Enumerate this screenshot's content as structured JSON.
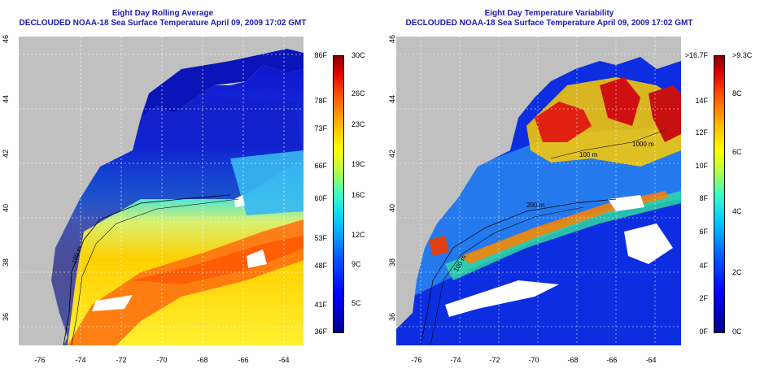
{
  "maps": [
    {
      "title": "Eight Day Rolling Average",
      "subtitle": "DECLOUDED NOAA-18 Sea Surface Temperature April 09, 2009 17:02 GMT",
      "lat_ticks": [
        "36",
        "38",
        "40",
        "42",
        "44",
        "46"
      ],
      "lon_ticks": [
        "-76",
        "-74",
        "-72",
        "-70",
        "-68",
        "-66",
        "-64"
      ],
      "colorbar": {
        "fahrenheit": [
          "86F",
          "78F",
          "73F",
          "66F",
          "60F",
          "53F",
          "48F",
          "41F",
          "36F"
        ],
        "celsius": [
          "30C",
          "26C",
          "23C",
          "19C",
          "16C",
          "12C",
          "9C",
          "5C"
        ]
      },
      "contour_labels": [
        "100 m"
      ],
      "colors": {
        "land": "#c0c0c0",
        "cold": "#0010c0",
        "warm": "#ff6a00",
        "missing": "#ffffff"
      }
    },
    {
      "title": "Eight Day Temperature Variability",
      "subtitle": "DECLOUDED NOAA-18 Sea Surface Temperature April 09, 2009 17:02 GMT",
      "lat_ticks": [
        "36",
        "38",
        "40",
        "42",
        "44",
        "46"
      ],
      "lon_ticks": [
        "-76",
        "-74",
        "-72",
        "-70",
        "-68",
        "-66",
        "-64"
      ],
      "colorbar": {
        "fahrenheit": [
          ">16.7F",
          "14F",
          "12F",
          "10F",
          "8F",
          "6F",
          "4F",
          "2F",
          "0F"
        ],
        "celsius": [
          ">9.3C",
          "8C",
          "6C",
          "4C",
          "2C",
          "0C"
        ]
      },
      "contour_labels": [
        "200 m",
        "1000 m",
        "100 m",
        "100 m"
      ],
      "colors": {
        "land": "#c0c0c0",
        "low": "#0018d8",
        "high": "#d81010",
        "missing": "#ffffff"
      }
    }
  ]
}
